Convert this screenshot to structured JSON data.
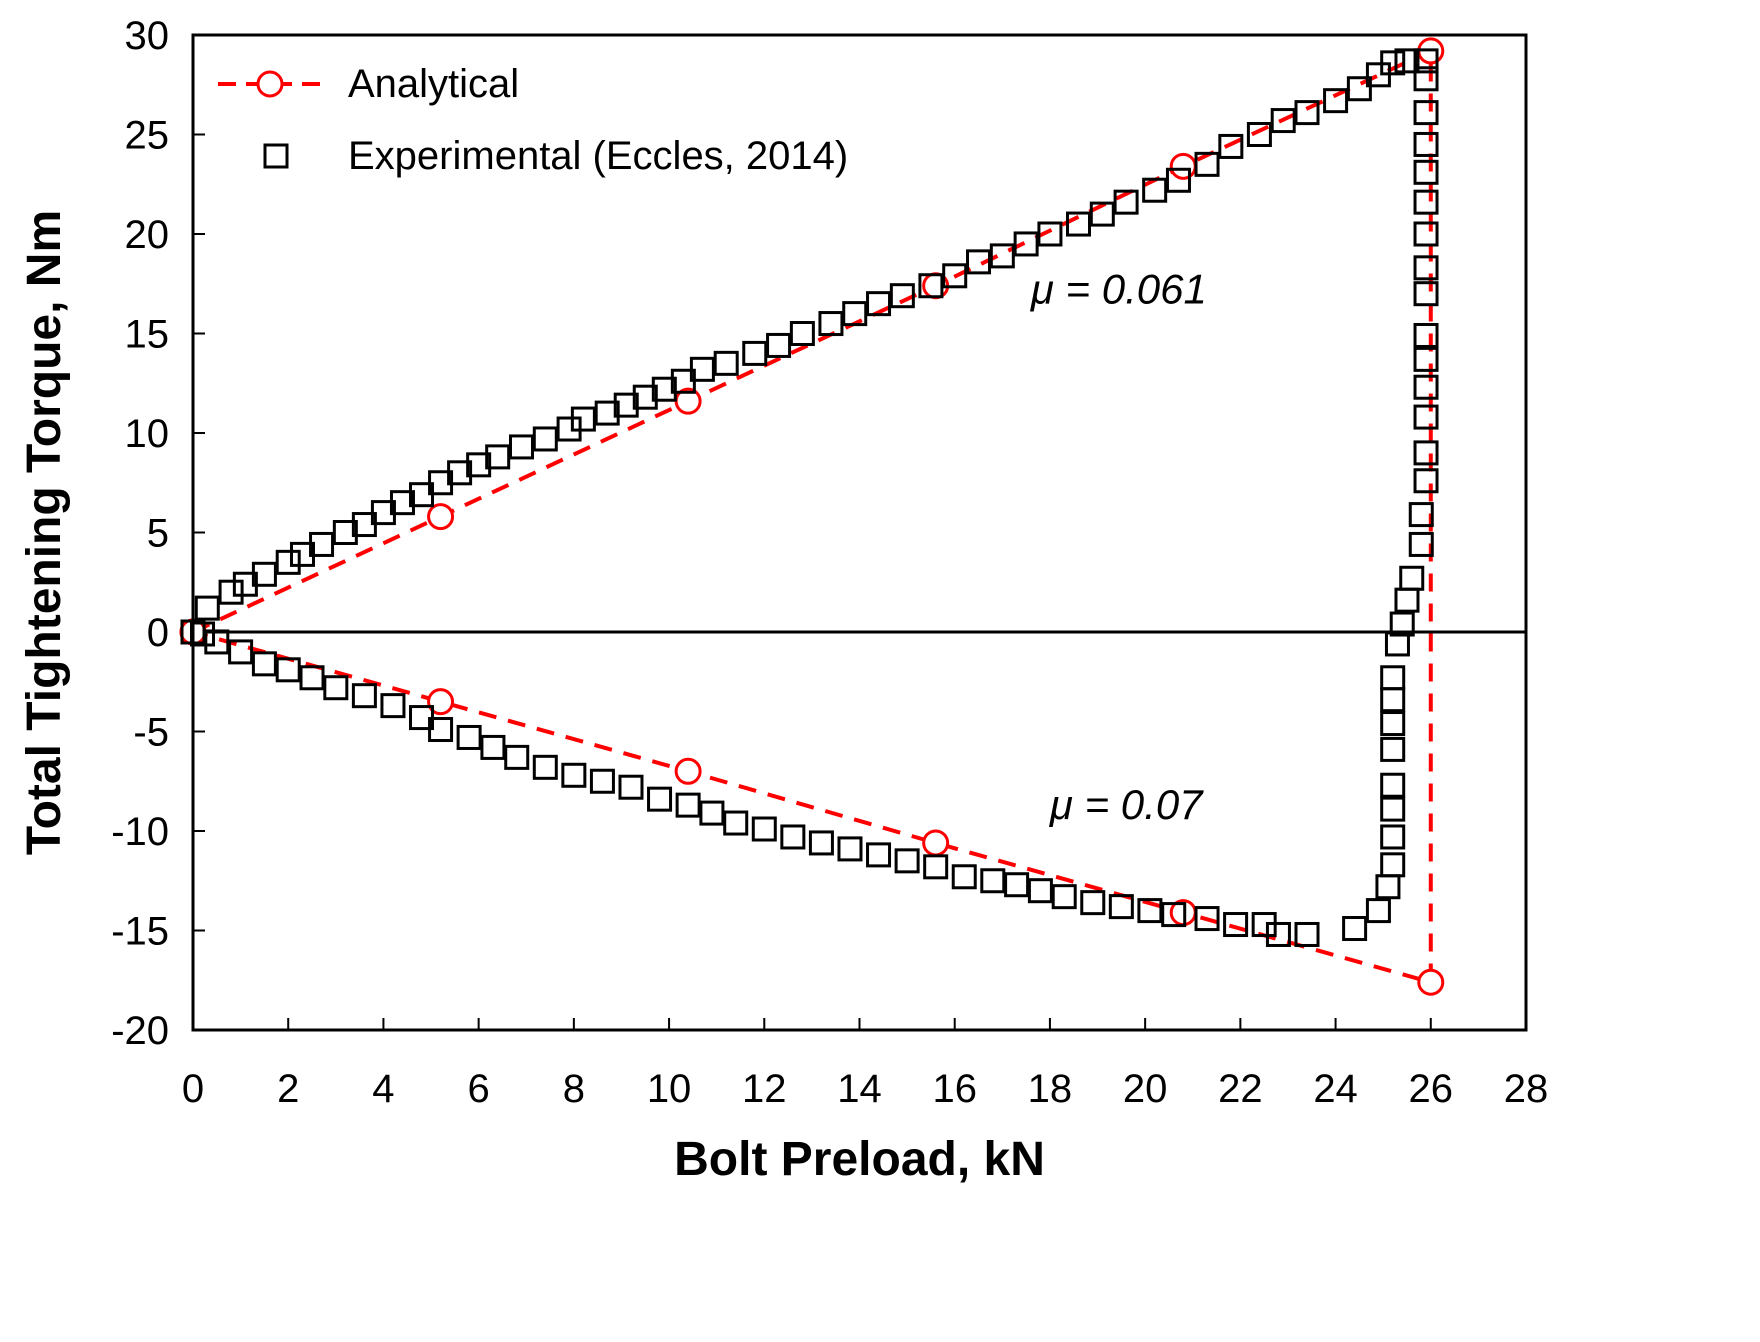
{
  "chart_data": {
    "type": "line",
    "title": "",
    "xlabel": "Bolt Preload, kN",
    "ylabel": "Total Tightening Torque, Nm",
    "xlim": [
      0,
      28
    ],
    "ylim": [
      -20,
      30
    ],
    "xticks": [
      0,
      2,
      4,
      6,
      8,
      10,
      12,
      14,
      16,
      18,
      20,
      22,
      24,
      26,
      28
    ],
    "yticks": [
      -20,
      -15,
      -10,
      -5,
      0,
      5,
      10,
      15,
      20,
      25,
      30
    ],
    "grid": false,
    "legend_position": "top-left",
    "colors": {
      "analytical": "#ff0000",
      "experimental": "#000000",
      "zero_line": "#000000"
    },
    "series": [
      {
        "name": "Analytical",
        "style": "dashed line with open circles",
        "points": [
          [
            0,
            0
          ],
          [
            5.2,
            5.8
          ],
          [
            10.4,
            11.6
          ],
          [
            15.6,
            17.4
          ],
          [
            20.8,
            23.4
          ],
          [
            26,
            29.2
          ],
          [
            26,
            -17.6
          ],
          [
            20.8,
            -14.1
          ],
          [
            15.6,
            -10.6
          ],
          [
            10.4,
            -7.0
          ],
          [
            5.2,
            -3.5
          ],
          [
            0,
            0
          ]
        ]
      },
      {
        "name": "Experimental (Eccles, 2014)",
        "style": "open squares",
        "points": [
          [
            0,
            0
          ],
          [
            0.3,
            1.2
          ],
          [
            0.8,
            2.0
          ],
          [
            1.1,
            2.4
          ],
          [
            1.5,
            2.9
          ],
          [
            2.0,
            3.5
          ],
          [
            2.3,
            3.9
          ],
          [
            2.7,
            4.4
          ],
          [
            3.2,
            5.0
          ],
          [
            3.6,
            5.4
          ],
          [
            4.0,
            6.0
          ],
          [
            4.4,
            6.5
          ],
          [
            4.8,
            6.9
          ],
          [
            5.2,
            7.5
          ],
          [
            5.6,
            8.0
          ],
          [
            6.0,
            8.4
          ],
          [
            6.4,
            8.8
          ],
          [
            6.9,
            9.3
          ],
          [
            7.4,
            9.7
          ],
          [
            7.9,
            10.2
          ],
          [
            8.2,
            10.7
          ],
          [
            8.7,
            11.0
          ],
          [
            9.1,
            11.4
          ],
          [
            9.5,
            11.8
          ],
          [
            9.9,
            12.2
          ],
          [
            10.3,
            12.6
          ],
          [
            10.7,
            13.2
          ],
          [
            11.2,
            13.5
          ],
          [
            11.8,
            14.0
          ],
          [
            12.3,
            14.4
          ],
          [
            12.8,
            15.0
          ],
          [
            13.4,
            15.5
          ],
          [
            13.9,
            16.0
          ],
          [
            14.4,
            16.5
          ],
          [
            14.9,
            16.9
          ],
          [
            15.5,
            17.4
          ],
          [
            16.0,
            17.9
          ],
          [
            16.5,
            18.6
          ],
          [
            17.0,
            18.9
          ],
          [
            17.5,
            19.5
          ],
          [
            18.0,
            20.0
          ],
          [
            18.6,
            20.5
          ],
          [
            19.1,
            21.0
          ],
          [
            19.6,
            21.6
          ],
          [
            20.2,
            22.2
          ],
          [
            20.7,
            22.7
          ],
          [
            21.3,
            23.5
          ],
          [
            21.8,
            24.4
          ],
          [
            22.4,
            25.0
          ],
          [
            22.9,
            25.7
          ],
          [
            23.4,
            26.1
          ],
          [
            24.0,
            26.7
          ],
          [
            24.5,
            27.3
          ],
          [
            24.9,
            28.0
          ],
          [
            25.2,
            28.6
          ],
          [
            25.5,
            28.7
          ],
          [
            25.9,
            28.7
          ],
          [
            25.9,
            27.8
          ],
          [
            25.9,
            26.1
          ],
          [
            25.9,
            24.5
          ],
          [
            25.9,
            23.1
          ],
          [
            25.9,
            21.6
          ],
          [
            25.9,
            20.0
          ],
          [
            25.9,
            18.3
          ],
          [
            25.9,
            17.0
          ],
          [
            25.9,
            14.9
          ],
          [
            25.9,
            13.7
          ],
          [
            25.9,
            12.3
          ],
          [
            25.9,
            10.8
          ],
          [
            25.9,
            9.0
          ],
          [
            25.9,
            7.6
          ],
          [
            25.8,
            5.9
          ],
          [
            25.8,
            4.4
          ],
          [
            25.6,
            2.7
          ],
          [
            25.5,
            1.6
          ],
          [
            25.4,
            0.4
          ],
          [
            25.3,
            -0.6
          ],
          [
            25.2,
            -2.3
          ],
          [
            25.2,
            -3.4
          ],
          [
            25.2,
            -4.6
          ],
          [
            25.2,
            -5.9
          ],
          [
            25.2,
            -7.7
          ],
          [
            25.2,
            -8.9
          ],
          [
            25.2,
            -10.3
          ],
          [
            25.2,
            -11.7
          ],
          [
            25.1,
            -12.8
          ],
          [
            24.9,
            -14.0
          ],
          [
            24.4,
            -14.9
          ],
          [
            23.4,
            -15.2
          ],
          [
            22.8,
            -15.2
          ],
          [
            22.5,
            -14.7
          ],
          [
            21.9,
            -14.7
          ],
          [
            21.3,
            -14.4
          ],
          [
            20.6,
            -14.2
          ],
          [
            20.1,
            -14.0
          ],
          [
            19.5,
            -13.8
          ],
          [
            18.9,
            -13.6
          ],
          [
            18.3,
            -13.3
          ],
          [
            17.8,
            -13.0
          ],
          [
            17.3,
            -12.7
          ],
          [
            16.8,
            -12.5
          ],
          [
            16.2,
            -12.3
          ],
          [
            15.6,
            -11.8
          ],
          [
            15.0,
            -11.5
          ],
          [
            14.4,
            -11.2
          ],
          [
            13.8,
            -10.9
          ],
          [
            13.2,
            -10.6
          ],
          [
            12.6,
            -10.3
          ],
          [
            12.0,
            -9.9
          ],
          [
            11.4,
            -9.6
          ],
          [
            10.9,
            -9.1
          ],
          [
            10.4,
            -8.7
          ],
          [
            9.8,
            -8.4
          ],
          [
            9.2,
            -7.8
          ],
          [
            8.6,
            -7.5
          ],
          [
            8.0,
            -7.2
          ],
          [
            7.4,
            -6.8
          ],
          [
            6.8,
            -6.3
          ],
          [
            6.3,
            -5.8
          ],
          [
            5.8,
            -5.3
          ],
          [
            5.2,
            -4.9
          ],
          [
            4.8,
            -4.3
          ],
          [
            4.2,
            -3.7
          ],
          [
            3.6,
            -3.2
          ],
          [
            3.0,
            -2.8
          ],
          [
            2.5,
            -2.3
          ],
          [
            2.0,
            -1.9
          ],
          [
            1.5,
            -1.6
          ],
          [
            1.0,
            -1.0
          ],
          [
            0.5,
            -0.5
          ],
          [
            0.2,
            -0.1
          ]
        ]
      }
    ],
    "annotations": [
      {
        "text": "μ = 0.061",
        "x": 17.6,
        "y": 16.5
      },
      {
        "text": "μ = 0.07",
        "x": 18.0,
        "y": -9.4
      }
    ]
  }
}
